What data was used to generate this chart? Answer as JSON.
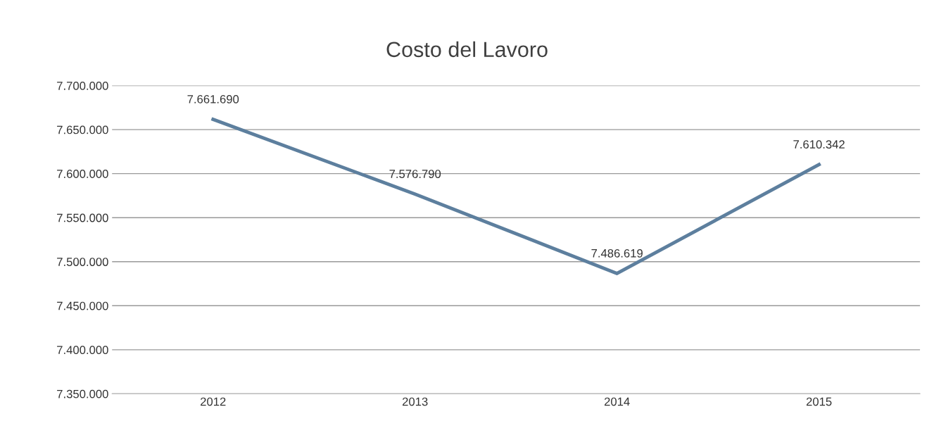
{
  "chart_data": {
    "type": "line",
    "title": "Costo del Lavoro",
    "categories": [
      "2012",
      "2013",
      "2014",
      "2015"
    ],
    "series": [
      {
        "color": "#5d7f9e",
        "values": [
          7661690,
          7576790,
          7486619,
          7610342
        ],
        "value_labels": [
          "7.661.690",
          "7.576.790",
          "7.486.619",
          "7.610.342"
        ]
      }
    ],
    "ylim": [
      7350000,
      7700000
    ],
    "yticks": [
      {
        "value": 7350000,
        "label": "7.350.000"
      },
      {
        "value": 7400000,
        "label": "7.400.000"
      },
      {
        "value": 7450000,
        "label": "7.450.000"
      },
      {
        "value": 7500000,
        "label": "7.500.000"
      },
      {
        "value": 7550000,
        "label": "7.550.000"
      },
      {
        "value": 7600000,
        "label": "7.600.000"
      },
      {
        "value": 7650000,
        "label": "7.650.000"
      },
      {
        "value": 7700000,
        "label": "7.700.000"
      }
    ],
    "grid": "y",
    "marker": "none",
    "line_style": "solid"
  }
}
